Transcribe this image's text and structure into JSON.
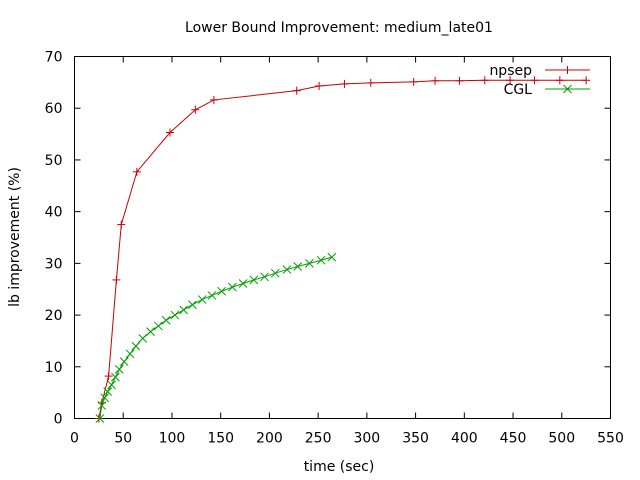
{
  "chart_data": {
    "type": "line",
    "title": "Lower Bound Improvement: medium_late01",
    "xlabel": "time (sec)",
    "ylabel": "lb improvement (%)",
    "xlim": [
      0,
      550
    ],
    "ylim": [
      0,
      70
    ],
    "xticks": [
      0,
      50,
      100,
      150,
      200,
      250,
      300,
      350,
      400,
      450,
      500,
      550
    ],
    "yticks": [
      0,
      10,
      20,
      30,
      40,
      50,
      60,
      70
    ],
    "grid": false,
    "legend_position": "top-right",
    "series": [
      {
        "name": "npsep",
        "color": "#cc0000",
        "marker": "plus",
        "x": [
          25,
          28,
          35,
          43,
          48,
          64,
          98,
          124,
          143,
          228,
          251,
          277,
          304,
          348,
          370,
          395,
          421,
          447,
          472,
          498,
          525
        ],
        "y": [
          0,
          3,
          8.2,
          26.8,
          37.5,
          47.7,
          55.3,
          59.7,
          61.6,
          63.4,
          64.3,
          64.7,
          64.9,
          65.1,
          65.3,
          65.3,
          65.4,
          65.4,
          65.4,
          65.4,
          65.4
        ]
      },
      {
        "name": "CGL",
        "color": "#00a000",
        "marker": "cross",
        "x": [
          26,
          28,
          31,
          34,
          38,
          42,
          46,
          51,
          57,
          63,
          70,
          78,
          86,
          94,
          103,
          112,
          121,
          131,
          141,
          151,
          162,
          173,
          184,
          195,
          206,
          218,
          229,
          241,
          253,
          264
        ],
        "y": [
          0,
          2.5,
          4,
          5.2,
          6.5,
          8,
          9.5,
          11,
          12.5,
          14,
          15.5,
          16.8,
          17.9,
          19,
          20,
          21,
          22,
          23,
          23.8,
          24.6,
          25.4,
          26.1,
          26.8,
          27.4,
          28.1,
          28.8,
          29.4,
          30,
          30.6,
          31.2
        ]
      }
    ]
  }
}
